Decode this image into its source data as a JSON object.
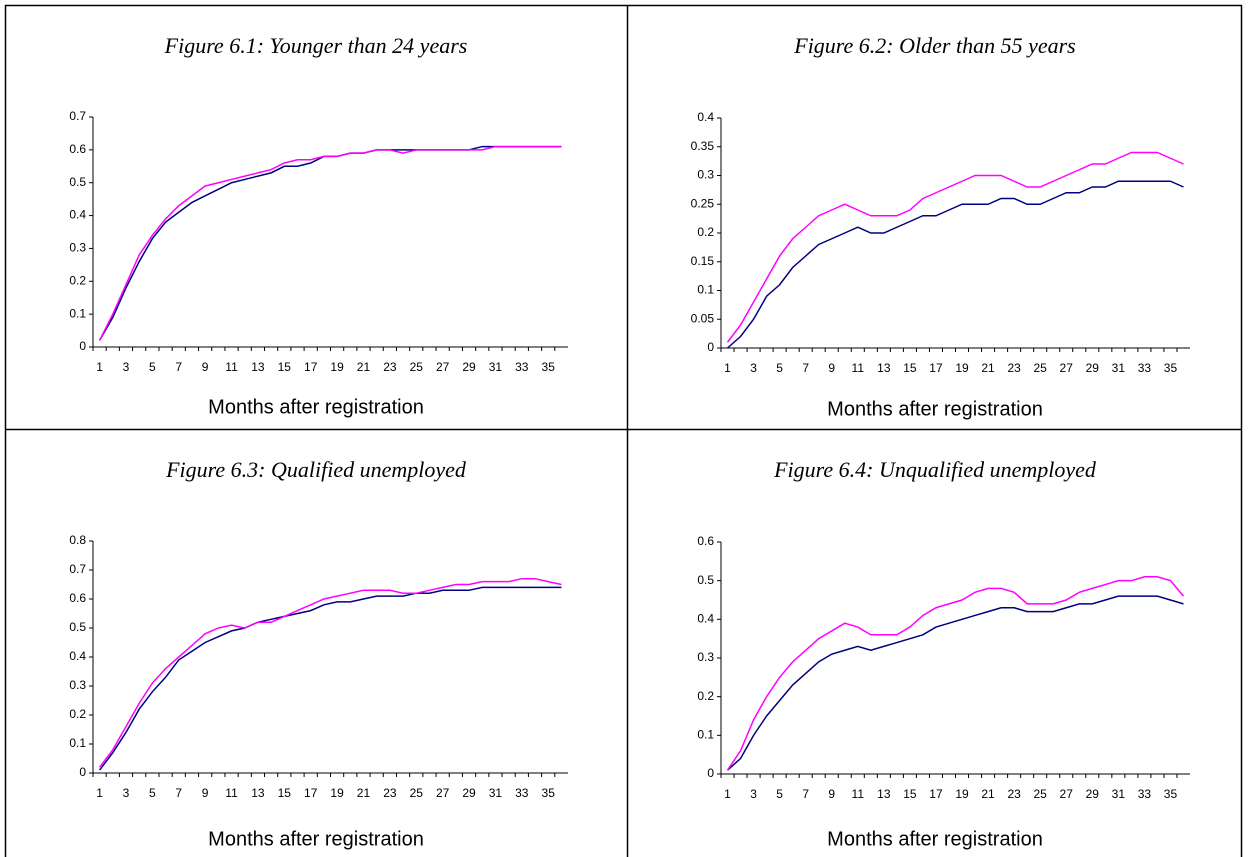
{
  "chart_data": [
    {
      "type": "line",
      "title": "Figure 6.1: Younger than 24 years",
      "x_label": "Months after registration",
      "categories": [
        1,
        null,
        3,
        null,
        5,
        null,
        7,
        null,
        9,
        null,
        11,
        null,
        13,
        null,
        15,
        null,
        17,
        null,
        19,
        null,
        21,
        null,
        23,
        null,
        25,
        null,
        27,
        null,
        29,
        null,
        31,
        null,
        33,
        null,
        35,
        null
      ],
      "series": [
        {
          "color": "#000080",
          "values": [
            0.02,
            0.09,
            0.18,
            0.26,
            0.33,
            0.38,
            0.41,
            0.44,
            0.46,
            0.48,
            0.5,
            0.51,
            0.52,
            0.53,
            0.55,
            0.55,
            0.56,
            0.58,
            0.58,
            0.59,
            0.59,
            0.6,
            0.6,
            0.6,
            0.6,
            0.6,
            0.6,
            0.6,
            0.6,
            0.61,
            0.61,
            0.61,
            0.61,
            0.61,
            0.61,
            0.61
          ]
        },
        {
          "color": "#ff00ff",
          "values": [
            0.02,
            0.1,
            0.19,
            0.28,
            0.34,
            0.39,
            0.43,
            0.46,
            0.49,
            0.5,
            0.51,
            0.52,
            0.53,
            0.54,
            0.56,
            0.57,
            0.57,
            0.58,
            0.58,
            0.59,
            0.59,
            0.6,
            0.6,
            0.59,
            0.6,
            0.6,
            0.6,
            0.6,
            0.6,
            0.6,
            0.61,
            0.61,
            0.61,
            0.61,
            0.61,
            0.61
          ]
        }
      ],
      "ylim": [
        0,
        0.7
      ],
      "yticks": [
        0,
        0.1,
        0.2,
        0.3,
        0.4,
        0.5,
        0.6,
        0.7
      ]
    },
    {
      "type": "line",
      "title": "Figure 6.2: Older than 55 years",
      "x_label": "Months after registration",
      "categories": [
        1,
        null,
        3,
        null,
        5,
        null,
        7,
        null,
        9,
        null,
        11,
        null,
        13,
        null,
        15,
        null,
        17,
        null,
        19,
        null,
        21,
        null,
        23,
        null,
        25,
        null,
        27,
        null,
        29,
        null,
        31,
        null,
        33,
        null,
        35,
        null
      ],
      "series": [
        {
          "color": "#000080",
          "values": [
            0,
            0.02,
            0.05,
            0.09,
            0.11,
            0.14,
            0.16,
            0.18,
            0.19,
            0.2,
            0.21,
            0.2,
            0.2,
            0.21,
            0.22,
            0.23,
            0.23,
            0.24,
            0.25,
            0.25,
            0.25,
            0.26,
            0.26,
            0.25,
            0.25,
            0.26,
            0.27,
            0.27,
            0.28,
            0.28,
            0.29,
            0.29,
            0.29,
            0.29,
            0.29,
            0.28
          ]
        },
        {
          "color": "#ff00ff",
          "values": [
            0.01,
            0.04,
            0.08,
            0.12,
            0.16,
            0.19,
            0.21,
            0.23,
            0.24,
            0.25,
            0.24,
            0.23,
            0.23,
            0.23,
            0.24,
            0.26,
            0.27,
            0.28,
            0.29,
            0.3,
            0.3,
            0.3,
            0.29,
            0.28,
            0.28,
            0.29,
            0.3,
            0.31,
            0.32,
            0.32,
            0.33,
            0.34,
            0.34,
            0.34,
            0.33,
            0.32
          ]
        }
      ],
      "ylim": [
        0,
        0.4
      ],
      "yticks": [
        0,
        0.05,
        0.1,
        0.15,
        0.2,
        0.25,
        0.3,
        0.35,
        0.4
      ]
    },
    {
      "type": "line",
      "title": "Figure 6.3: Qualified unemployed",
      "x_label": "Months after registration",
      "categories": [
        1,
        null,
        3,
        null,
        5,
        null,
        7,
        null,
        9,
        null,
        11,
        null,
        13,
        null,
        15,
        null,
        17,
        null,
        19,
        null,
        21,
        null,
        23,
        null,
        25,
        null,
        27,
        null,
        29,
        null,
        31,
        null,
        33,
        null,
        35,
        null
      ],
      "series": [
        {
          "color": "#000080",
          "values": [
            0.01,
            0.07,
            0.14,
            0.22,
            0.28,
            0.33,
            0.39,
            0.42,
            0.45,
            0.47,
            0.49,
            0.5,
            0.52,
            0.53,
            0.54,
            0.55,
            0.56,
            0.58,
            0.59,
            0.59,
            0.6,
            0.61,
            0.61,
            0.61,
            0.62,
            0.62,
            0.63,
            0.63,
            0.63,
            0.64,
            0.64,
            0.64,
            0.64,
            0.64,
            0.64,
            0.64
          ]
        },
        {
          "color": "#ff00ff",
          "values": [
            0.02,
            0.08,
            0.16,
            0.24,
            0.31,
            0.36,
            0.4,
            0.44,
            0.48,
            0.5,
            0.51,
            0.5,
            0.52,
            0.52,
            0.54,
            0.56,
            0.58,
            0.6,
            0.61,
            0.62,
            0.63,
            0.63,
            0.63,
            0.62,
            0.62,
            0.63,
            0.64,
            0.65,
            0.65,
            0.66,
            0.66,
            0.66,
            0.67,
            0.67,
            0.66,
            0.65
          ]
        }
      ],
      "ylim": [
        0,
        0.8
      ],
      "yticks": [
        0,
        0.1,
        0.2,
        0.3,
        0.4,
        0.5,
        0.6,
        0.7,
        0.8
      ]
    },
    {
      "type": "line",
      "title": "Figure 6.4: Unqualified unemployed",
      "x_label": "Months after registration",
      "categories": [
        1,
        null,
        3,
        null,
        5,
        null,
        7,
        null,
        9,
        null,
        11,
        null,
        13,
        null,
        15,
        null,
        17,
        null,
        19,
        null,
        21,
        null,
        23,
        null,
        25,
        null,
        27,
        null,
        29,
        null,
        31,
        null,
        33,
        null,
        35,
        null
      ],
      "series": [
        {
          "color": "#000080",
          "values": [
            0.01,
            0.04,
            0.1,
            0.15,
            0.19,
            0.23,
            0.26,
            0.29,
            0.31,
            0.32,
            0.33,
            0.32,
            0.33,
            0.34,
            0.35,
            0.36,
            0.38,
            0.39,
            0.4,
            0.41,
            0.42,
            0.43,
            0.43,
            0.42,
            0.42,
            0.42,
            0.43,
            0.44,
            0.44,
            0.45,
            0.46,
            0.46,
            0.46,
            0.46,
            0.45,
            0.44
          ]
        },
        {
          "color": "#ff00ff",
          "values": [
            0.01,
            0.06,
            0.14,
            0.2,
            0.25,
            0.29,
            0.32,
            0.35,
            0.37,
            0.39,
            0.38,
            0.36,
            0.36,
            0.36,
            0.38,
            0.41,
            0.43,
            0.44,
            0.45,
            0.47,
            0.48,
            0.48,
            0.47,
            0.44,
            0.44,
            0.44,
            0.45,
            0.47,
            0.48,
            0.49,
            0.5,
            0.5,
            0.51,
            0.51,
            0.5,
            0.46
          ]
        }
      ],
      "ylim": [
        0,
        0.6
      ],
      "yticks": [
        0,
        0.1,
        0.2,
        0.3,
        0.4,
        0.5,
        0.6
      ]
    }
  ]
}
